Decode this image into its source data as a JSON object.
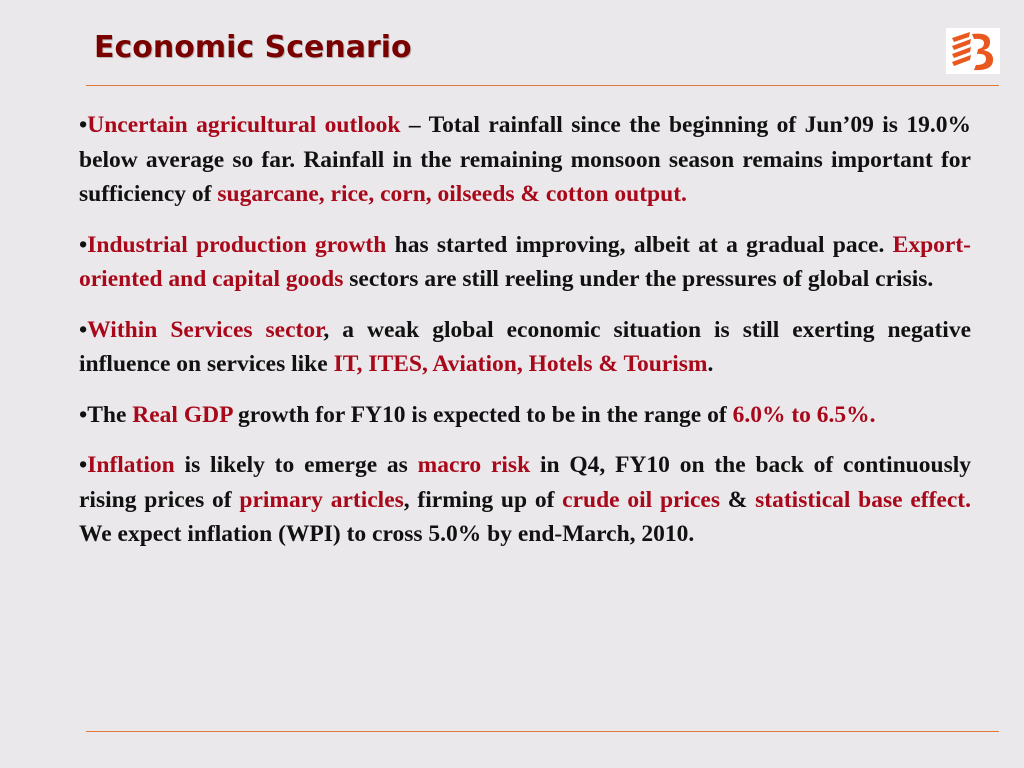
{
  "slide": {
    "title": "Economic Scenario",
    "logo_icon": "bank-of-baroda-logo",
    "colors": {
      "title": "#7a0000",
      "highlight": "#a8081a",
      "rule": "#e07a3a",
      "logo": "#e8581f"
    }
  },
  "bullets": [
    {
      "segments": [
        {
          "text": "•",
          "highlight": false
        },
        {
          "text": "Uncertain agricultural outlook",
          "highlight": true
        },
        {
          "text": " – Total rainfall since the beginning of Jun’09 is 19.0% below average so far. Rainfall in the remaining monsoon season remains important for sufficiency of ",
          "highlight": false
        },
        {
          "text": "sugarcane, rice, corn, oilseeds & cotton output.",
          "highlight": true
        }
      ]
    },
    {
      "segments": [
        {
          "text": "•",
          "highlight": false
        },
        {
          "text": "Industrial production growth",
          "highlight": true
        },
        {
          "text": " has started improving, albeit at a gradual pace. ",
          "highlight": false
        },
        {
          "text": "Export-oriented and capital goods",
          "highlight": true
        },
        {
          "text": " sectors are still reeling under the pressures of global crisis.",
          "highlight": false
        }
      ]
    },
    {
      "segments": [
        {
          "text": "•",
          "highlight": false
        },
        {
          "text": "Within Services sector",
          "highlight": true
        },
        {
          "text": ", a weak global economic situation is still exerting negative influence on services like ",
          "highlight": false
        },
        {
          "text": "IT, ITES, Aviation, Hotels & Tourism",
          "highlight": true
        },
        {
          "text": ".",
          "highlight": false
        }
      ]
    },
    {
      "segments": [
        {
          "text": "•The ",
          "highlight": false
        },
        {
          "text": "Real GDP",
          "highlight": true
        },
        {
          "text": " growth for FY10 is expected to be in the range of ",
          "highlight": false
        },
        {
          "text": "6.0% to 6.5%.",
          "highlight": true
        }
      ]
    },
    {
      "segments": [
        {
          "text": "•",
          "highlight": false
        },
        {
          "text": "Inflation",
          "highlight": true
        },
        {
          "text": " is likely to emerge as ",
          "highlight": false
        },
        {
          "text": "macro risk",
          "highlight": true
        },
        {
          "text": " in Q4, FY10 on the back of continuously rising prices of ",
          "highlight": false
        },
        {
          "text": "primary articles",
          "highlight": true
        },
        {
          "text": ", firming up of ",
          "highlight": false
        },
        {
          "text": "crude oil prices",
          "highlight": true
        },
        {
          "text": " & ",
          "highlight": false
        },
        {
          "text": "statistical base effect.",
          "highlight": true
        },
        {
          "text": " We expect inflation (WPI) to cross 5.0% by end-March, 2010.",
          "highlight": false
        }
      ]
    }
  ]
}
